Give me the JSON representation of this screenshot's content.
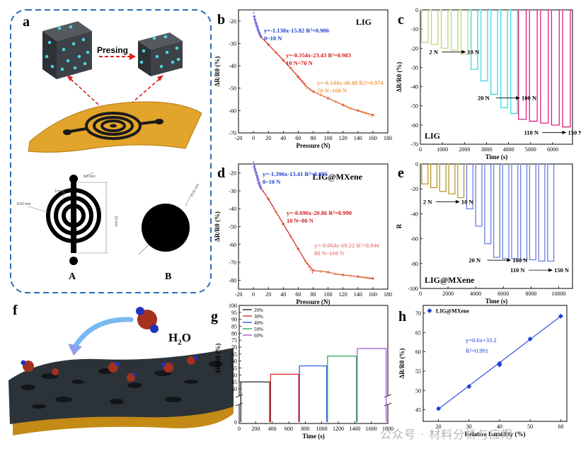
{
  "panel_a": {
    "letter": "a",
    "arrow_label": "Presing",
    "dims": [
      "8.6 mm",
      "3 mm",
      "8.00 mm",
      "10 mm",
      "8.00 mm"
    ],
    "label_a": "A",
    "label_b": "B"
  },
  "panel_f": {
    "letter": "f",
    "molecule_label": "H",
    "molecule_sub": "2",
    "molecule_tail": "O"
  },
  "watermark": "公众号 · 材料分析与应用",
  "colors": {
    "border_blue": "#2f6eb5",
    "black": "#111111",
    "blue": "#1f3fd1",
    "red": "#d21b1b",
    "orange": "#f0a050",
    "pink": "#e89090",
    "purple": "#8a7be8"
  },
  "chart_data": [
    {
      "id": "b",
      "letter": "b",
      "type": "scatter",
      "title": "LIG",
      "xlabel": "Pressure (N)",
      "ylabel": "ΔR/R0 (%)",
      "xlim": [
        -20,
        180
      ],
      "ylim": [
        -70,
        -15
      ],
      "xticks": [
        -20,
        0,
        20,
        40,
        60,
        80,
        100,
        120,
        140,
        160,
        180
      ],
      "yticks": [
        -70,
        -60,
        -50,
        -40,
        -30,
        -20
      ],
      "points": {
        "x": [
          1,
          2,
          3,
          4,
          5,
          6,
          7,
          8,
          9,
          10,
          20,
          30,
          40,
          50,
          60,
          70,
          80,
          90,
          100,
          110,
          120,
          130,
          140,
          150,
          160
        ],
        "y": [
          -18,
          -19.5,
          -20.7,
          -21.8,
          -22.8,
          -23.8,
          -24.7,
          -25.5,
          -26.2,
          -27,
          -30.5,
          -34,
          -37.5,
          -41,
          -45,
          -49,
          -51.5,
          -53,
          -54.5,
          -56,
          -57.5,
          -59,
          -60,
          -61,
          -62
        ]
      },
      "fits": [
        {
          "label": "y=-1.138x-15.82 R²=0.986",
          "range_label": "0~10 N",
          "slope": -1.138,
          "intercept": -15.82,
          "x_from": 0,
          "x_to": 10,
          "color": "#1f3fd1"
        },
        {
          "label": "y=-0.354x-23.43 R²=0.983",
          "range_label": "10 N~70 N",
          "slope": -0.354,
          "intercept": -23.43,
          "x_from": 10,
          "x_to": 70,
          "color": "#d21b1b"
        },
        {
          "label": "y=-0.144x-40.08 R2=0.974",
          "range_label": "70 N~160 N",
          "slope": -0.144,
          "intercept": -40.08,
          "x_from": 70,
          "x_to": 160,
          "color": "#f0a050"
        }
      ]
    },
    {
      "id": "d",
      "letter": "d",
      "type": "scatter",
      "title": "LIG@MXene",
      "xlabel": "Pressure (N)",
      "ylabel": "ΔR/R0 (%)",
      "xlim": [
        -20,
        180
      ],
      "ylim": [
        -85,
        -15
      ],
      "xticks": [
        -20,
        0,
        20,
        40,
        60,
        80,
        100,
        120,
        140,
        160,
        180
      ],
      "yticks": [
        -80,
        -70,
        -60,
        -50,
        -40,
        -30,
        -20
      ],
      "points": {
        "x": [
          1,
          2,
          3,
          4,
          5,
          6,
          7,
          8,
          9,
          10,
          20,
          30,
          40,
          50,
          60,
          70,
          80,
          90,
          100,
          110,
          120,
          130,
          140,
          150,
          160
        ],
        "y": [
          -16.5,
          -18,
          -19.5,
          -21,
          -22.5,
          -24,
          -25.5,
          -26.5,
          -27.5,
          -28.5,
          -34.5,
          -41.5,
          -48.5,
          -55.5,
          -62.5,
          -69.5,
          -74.5,
          -75,
          -75.5,
          -76.5,
          -77,
          -77.5,
          -78,
          -78.5,
          -79
        ]
      },
      "fits": [
        {
          "label": "y=-1.396x-13.41 R²=0.995",
          "range_label": "0~10 N",
          "slope": -1.396,
          "intercept": -13.41,
          "x_from": 0,
          "x_to": 10,
          "color": "#1f3fd1"
        },
        {
          "label": "y=-0.696x-20.86 R²=0.990",
          "range_label": "10 N~80 N",
          "slope": -0.696,
          "intercept": -20.86,
          "x_from": 10,
          "x_to": 80,
          "color": "#d21b1b"
        },
        {
          "label": "y=-0.064x-69.22 R²=0.946",
          "range_label": "80 N~160 N",
          "slope": -0.064,
          "intercept": -69.22,
          "x_from": 80,
          "x_to": 160,
          "color": "#e89090"
        }
      ]
    },
    {
      "id": "c",
      "letter": "c",
      "type": "line",
      "title": "LIG",
      "xlabel": "Time (s)",
      "ylabel": "ΔR/R0 (%)",
      "xlim": [
        0,
        6900
      ],
      "ylim": [
        -70,
        0
      ],
      "xticks": [
        0,
        1000,
        2000,
        3000,
        4000,
        5000,
        6000
      ],
      "yticks": [
        -70,
        -60,
        -50,
        -40,
        -30,
        -20,
        -10,
        0
      ],
      "pulses": [
        {
          "t_start": 50,
          "t_end": 350,
          "depth": -17,
          "color": "#b8d87a"
        },
        {
          "t_start": 500,
          "t_end": 800,
          "depth": -18,
          "color": "#b8d87a"
        },
        {
          "t_start": 950,
          "t_end": 1250,
          "depth": -20,
          "color": "#b8d87a"
        },
        {
          "t_start": 1400,
          "t_end": 1700,
          "depth": -21,
          "color": "#b8d87a"
        },
        {
          "t_start": 1850,
          "t_end": 2150,
          "depth": -23,
          "color": "#b8d87a"
        },
        {
          "t_start": 2300,
          "t_end": 2600,
          "depth": -31,
          "color": "#3fd8e0"
        },
        {
          "t_start": 2750,
          "t_end": 3050,
          "depth": -37,
          "color": "#3fd8e0"
        },
        {
          "t_start": 3200,
          "t_end": 3500,
          "depth": -44,
          "color": "#3fd8e0"
        },
        {
          "t_start": 3650,
          "t_end": 3950,
          "depth": -51,
          "color": "#3fd8e0"
        },
        {
          "t_start": 4100,
          "t_end": 4400,
          "depth": -54,
          "color": "#3fd8e0"
        },
        {
          "t_start": 4450,
          "t_end": 4800,
          "depth": -57,
          "color": "#e0207a"
        },
        {
          "t_start": 4950,
          "t_end": 5300,
          "depth": -58,
          "color": "#e0207a"
        },
        {
          "t_start": 5450,
          "t_end": 5800,
          "depth": -59,
          "color": "#e0207a"
        },
        {
          "t_start": 5950,
          "t_end": 6300,
          "depth": -60,
          "color": "#e0207a"
        },
        {
          "t_start": 6450,
          "t_end": 6800,
          "depth": -61,
          "color": "#e0207a"
        }
      ],
      "annotations": [
        {
          "text_from": "2 N",
          "text_to": "10 N",
          "x": 400,
          "y": -23
        },
        {
          "text_from": "20 N",
          "text_to": "100 N",
          "x": 2600,
          "y": -47
        },
        {
          "text_from": "110 N",
          "text_to": "150 N",
          "x": 4700,
          "y": -65
        }
      ]
    },
    {
      "id": "e",
      "letter": "e",
      "type": "line",
      "title": "LIG@MXene",
      "xlabel": "Time (s)",
      "ylabel": "R",
      "xlim": [
        0,
        11000
      ],
      "ylim": [
        -100,
        0
      ],
      "xticks": [
        0,
        2000,
        4000,
        6000,
        8000,
        10000
      ],
      "yticks": [
        -100,
        -80,
        -60,
        -40,
        -20,
        0
      ],
      "pulses": [
        {
          "t_start": 100,
          "t_end": 550,
          "depth": -16,
          "color": "#b89a2a"
        },
        {
          "t_start": 750,
          "t_end": 1200,
          "depth": -19,
          "color": "#b89a2a"
        },
        {
          "t_start": 1400,
          "t_end": 1850,
          "depth": -22,
          "color": "#b89a2a"
        },
        {
          "t_start": 2050,
          "t_end": 2500,
          "depth": -24,
          "color": "#b89a2a"
        },
        {
          "t_start": 2700,
          "t_end": 3150,
          "depth": -27,
          "color": "#b89a2a"
        },
        {
          "t_start": 3350,
          "t_end": 3800,
          "depth": -36,
          "color": "#6a7fe0"
        },
        {
          "t_start": 4000,
          "t_end": 4450,
          "depth": -50,
          "color": "#6a7fe0"
        },
        {
          "t_start": 4650,
          "t_end": 5100,
          "depth": -64,
          "color": "#6a7fe0"
        },
        {
          "t_start": 5300,
          "t_end": 5750,
          "depth": -75,
          "color": "#6a7fe0"
        },
        {
          "t_start": 5950,
          "t_end": 6400,
          "depth": -76,
          "color": "#6a7fe0"
        },
        {
          "t_start": 6600,
          "t_end": 7050,
          "depth": -76,
          "color": "#6a7fe0"
        },
        {
          "t_start": 7250,
          "t_end": 7700,
          "depth": -77,
          "color": "#6a7fe0"
        },
        {
          "t_start": 7900,
          "t_end": 8350,
          "depth": -77,
          "color": "#6a7fe0"
        },
        {
          "t_start": 8550,
          "t_end": 9000,
          "depth": -78,
          "color": "#6a7fe0"
        },
        {
          "t_start": 9200,
          "t_end": 9650,
          "depth": -78,
          "color": "#6a7fe0"
        }
      ],
      "annotations": [
        {
          "text_from": "2 N",
          "text_to": "10 N",
          "x": 200,
          "y": -32
        },
        {
          "text_from": "20 N",
          "text_to": "100 N",
          "x": 3500,
          "y": -79
        },
        {
          "text_from": "110 N",
          "text_to": "150 N",
          "x": 6500,
          "y": -87
        }
      ]
    },
    {
      "id": "g",
      "letter": "g",
      "type": "line",
      "xlabel": "Time (s)",
      "ylabel": "ΔR/R0 (%)",
      "xlim": [
        0,
        1800
      ],
      "upper_ylim": [
        40,
        100
      ],
      "upper_yticks": [
        40,
        45,
        50,
        55,
        60,
        65,
        70,
        75,
        80,
        85,
        90,
        95,
        100
      ],
      "lower_ylim": [
        0,
        1
      ],
      "lower_yticks": [
        0
      ],
      "xticks": [
        0,
        200,
        400,
        600,
        800,
        1000,
        1200,
        1400,
        1600,
        1800
      ],
      "series": [
        {
          "name": "20%",
          "t_start": 20,
          "t_end": 370,
          "value": 45,
          "color": "#111111"
        },
        {
          "name": "30%",
          "t_start": 380,
          "t_end": 720,
          "value": 50.5,
          "color": "#e02020"
        },
        {
          "name": "40%",
          "t_start": 730,
          "t_end": 1060,
          "value": 56.5,
          "color": "#2050e0"
        },
        {
          "name": "50%",
          "t_start": 1070,
          "t_end": 1420,
          "value": 63.5,
          "color": "#20a050"
        },
        {
          "name": "60%",
          "t_start": 1430,
          "t_end": 1780,
          "value": 69,
          "color": "#a050d0"
        }
      ]
    },
    {
      "id": "h",
      "letter": "h",
      "type": "scatter",
      "legend": "LIG@MXene",
      "xlabel": "Relative humidity (%)",
      "ylabel": "ΔR/R0 (%)",
      "xlim": [
        15,
        62
      ],
      "ylim": [
        42,
        72
      ],
      "xticks": [
        20,
        30,
        40,
        50,
        60
      ],
      "yticks": [
        45,
        50,
        55,
        60,
        65,
        70
      ],
      "x": [
        20,
        30,
        40,
        40,
        50,
        60
      ],
      "y": [
        45.3,
        51,
        56.6,
        57,
        63.3,
        69.2
      ],
      "fit_label": "y=0.6x+33.2",
      "r2_label": "R²=0.991",
      "slope": 0.6,
      "intercept": 33.2
    }
  ]
}
